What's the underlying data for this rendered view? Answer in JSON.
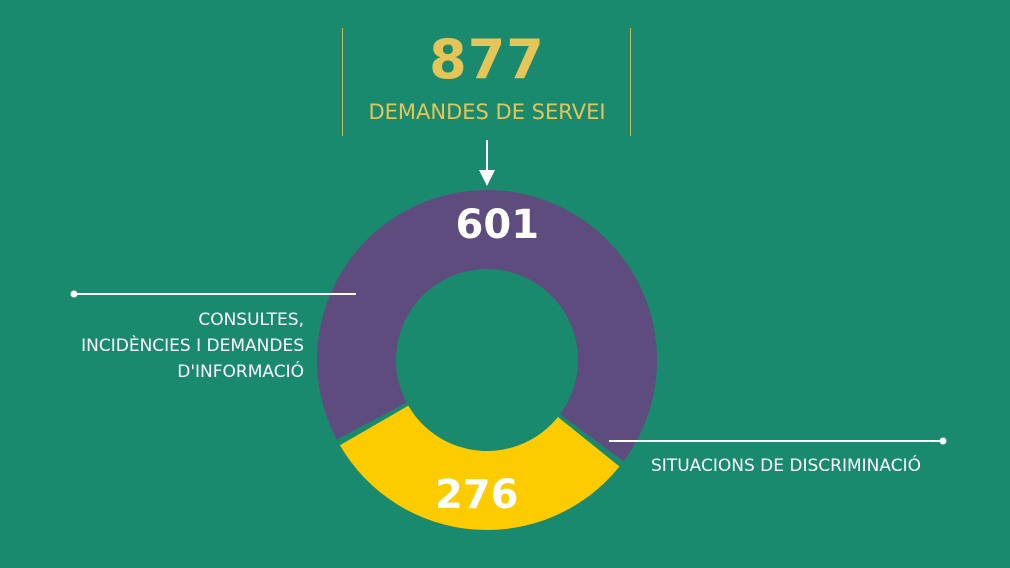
{
  "chart_data": {
    "type": "pie",
    "total": {
      "value": "877",
      "label": "DEMANDES DE SERVEI"
    },
    "slices": [
      {
        "value": 601,
        "label": "601",
        "category": "CONSULTES, INCIDÈNCIES I DEMANDES D'INFORMACIÓ",
        "color": "#5f4c7e"
      },
      {
        "value": 276,
        "label": "276",
        "category": "SITUACIONS DE DISCRIMINACIÓ",
        "color": "#fccb00"
      }
    ]
  },
  "left_label_lines": [
    "CONSULTES,",
    "INCIDÈNCIES I DEMANDES",
    "D'INFORMACIÓ"
  ],
  "right_label": "SITUACIONS DE DISCRIMINACIÓ",
  "colors": {
    "background": "#1a8a6e",
    "accent": "#e5c558",
    "leader": "#ffffff"
  }
}
